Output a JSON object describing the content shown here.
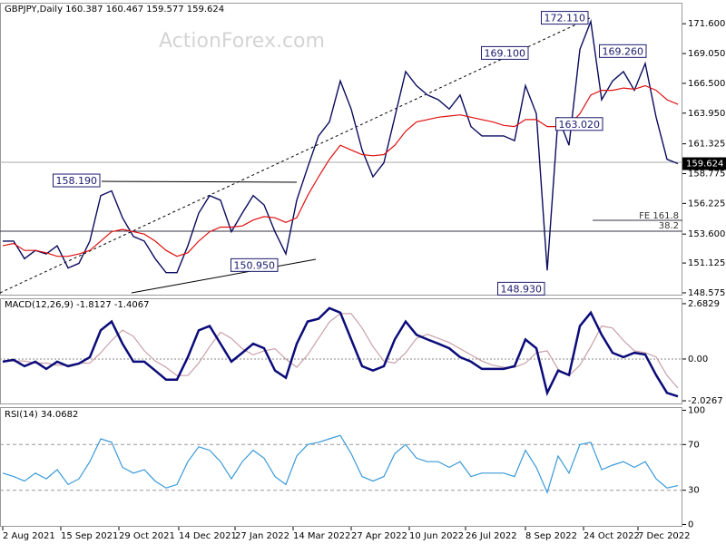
{
  "chart_data": [
    {
      "type": "line",
      "title": "GBPJPY,Daily  160.387 160.467 159.577 159.624",
      "watermark": "ActionForex.com",
      "x": [
        0,
        6,
        12,
        18,
        24,
        30,
        36,
        42,
        48,
        54,
        60,
        66,
        72,
        78,
        84,
        90,
        96,
        102,
        108,
        114,
        120,
        126,
        132,
        138,
        144,
        150,
        156,
        162,
        168,
        174,
        180,
        186,
        192,
        198,
        204,
        210,
        216,
        222,
        228,
        234,
        240,
        246,
        252,
        258,
        264,
        270,
        276,
        282,
        288,
        294,
        300,
        306,
        312,
        318,
        324,
        330,
        336,
        342,
        348,
        354,
        360,
        366,
        372
      ],
      "series": [
        {
          "color": "#0b0b5e",
          "values": [
            153.0,
            153.0,
            151.5,
            152.2,
            151.9,
            152.6,
            150.7,
            151.1,
            153.0,
            156.9,
            157.3,
            155.0,
            153.4,
            153.0,
            151.5,
            150.3,
            150.3,
            152.6,
            155.4,
            156.9,
            156.5,
            153.8,
            155.4,
            156.9,
            156.1,
            153.8,
            151.9,
            156.5,
            159.3,
            162.0,
            163.2,
            166.7,
            164.3,
            160.8,
            158.5,
            159.7,
            163.6,
            167.5,
            166.3,
            165.5,
            165.1,
            164.3,
            165.5,
            162.8,
            162.0,
            162.0,
            162.0,
            161.6,
            166.3,
            163.9,
            150.5,
            163.6,
            161.2,
            169.4,
            171.8,
            165.1,
            166.7,
            167.5,
            165.9,
            168.2,
            163.6,
            160.0,
            159.624
          ]
        },
        {
          "color": "#e01010",
          "values": [
            152.6,
            152.8,
            152.2,
            152.2,
            152.0,
            151.7,
            151.7,
            151.9,
            152.2,
            153.0,
            153.8,
            154.0,
            153.8,
            153.6,
            153.0,
            152.2,
            151.7,
            152.0,
            153.0,
            153.8,
            154.2,
            154.2,
            154.3,
            154.8,
            155.1,
            155.0,
            154.6,
            155.0,
            156.9,
            158.5,
            160.0,
            161.2,
            160.8,
            160.4,
            160.3,
            160.4,
            161.2,
            162.4,
            163.2,
            163.4,
            163.6,
            163.7,
            163.8,
            163.6,
            163.4,
            163.2,
            162.9,
            162.8,
            163.4,
            163.4,
            162.8,
            162.8,
            162.9,
            163.9,
            165.5,
            165.9,
            165.9,
            166.1,
            166.0,
            166.3,
            165.9,
            165.1,
            164.7
          ]
        }
      ],
      "ylim": [
        148.34,
        173.32
      ],
      "yticks": [
        {
          "value": 171.6,
          "label": "171.600"
        },
        {
          "value": 169.05,
          "label": "169.050"
        },
        {
          "value": 166.5,
          "label": "166.500"
        },
        {
          "value": 163.95,
          "label": "163.950"
        },
        161.325,
        158.775,
        156.225,
        {
          "value": 153.6,
          "label": "153.600"
        },
        151.125,
        148.575
      ],
      "last_price": 159.624,
      "annotations": [
        {
          "x": 324,
          "value": 172.11,
          "label": "172.110"
        },
        {
          "x": 291,
          "value": 169.1,
          "label": "169.100"
        },
        {
          "x": 356,
          "value": 169.26,
          "label": "169.260"
        },
        {
          "x": 332,
          "value": 163.02,
          "label": "163.020"
        },
        {
          "x": 55,
          "value": 158.19,
          "label": "158.190"
        },
        {
          "x": 153,
          "value": 150.95,
          "label": "150.950"
        },
        {
          "x": 300,
          "value": 148.93,
          "label": "148.930"
        }
      ],
      "level_labels": [
        "FE 161.8",
        "38.2"
      ]
    },
    {
      "type": "line",
      "title": "MACD(12,26,9) -1.8127 -1.4067",
      "x": [
        0,
        6,
        12,
        18,
        24,
        30,
        36,
        42,
        48,
        54,
        60,
        66,
        72,
        78,
        84,
        90,
        96,
        102,
        108,
        114,
        120,
        126,
        132,
        138,
        144,
        150,
        156,
        162,
        168,
        174,
        180,
        186,
        192,
        198,
        204,
        210,
        216,
        222,
        228,
        234,
        240,
        246,
        252,
        258,
        264,
        270,
        276,
        282,
        288,
        294,
        300,
        306,
        312,
        318,
        324,
        330,
        336,
        342,
        348,
        354,
        360,
        366,
        372
      ],
      "series": [
        {
          "color": "#c8a0a8",
          "values": [
            -0.1,
            -0.1,
            -0.1,
            -0.2,
            -0.2,
            -0.3,
            -0.3,
            -0.2,
            -0.2,
            0.3,
            0.9,
            1.4,
            1.1,
            0.4,
            -0.1,
            -0.4,
            -0.8,
            -0.8,
            -0.2,
            0.6,
            1.3,
            1.0,
            0.5,
            0.2,
            0.4,
            0.5,
            0.0,
            -0.4,
            0.2,
            1.0,
            1.8,
            2.2,
            2.2,
            1.5,
            0.6,
            -0.1,
            -0.2,
            0.3,
            1.0,
            1.2,
            1.0,
            0.8,
            0.5,
            0.2,
            -0.1,
            -0.3,
            -0.4,
            -0.4,
            -0.2,
            0.3,
            0.4,
            -0.5,
            -0.8,
            -0.3,
            0.6,
            1.6,
            1.5,
            0.9,
            0.4,
            0.3,
            0.1,
            -0.8,
            -1.4067
          ]
        },
        {
          "color": "#0b0b7a",
          "values": [
            -0.13,
            -0.04,
            -0.35,
            -0.13,
            -0.48,
            -0.13,
            -0.35,
            -0.22,
            0.09,
            1.39,
            1.82,
            0.74,
            -0.13,
            -0.13,
            -0.56,
            -1.0,
            -1.0,
            0.09,
            1.39,
            1.6,
            0.74,
            -0.13,
            0.3,
            0.74,
            0.52,
            -0.56,
            -0.91,
            0.74,
            1.82,
            1.95,
            2.47,
            2.25,
            0.95,
            -0.35,
            -0.56,
            -0.35,
            0.95,
            1.82,
            1.17,
            0.95,
            0.74,
            0.52,
            0.09,
            -0.13,
            -0.48,
            -0.48,
            -0.48,
            -0.35,
            0.95,
            0.52,
            -1.64,
            -0.56,
            -0.78,
            1.6,
            2.25,
            1.17,
            0.3,
            0.09,
            0.3,
            0.22,
            -0.78,
            -1.64,
            -1.8127
          ]
        }
      ],
      "ylim": [
        -2.2,
        2.9
      ],
      "yticks": [
        2.6829,
        {
          "value": 0,
          "label": "0.00"
        },
        -2.0267
      ]
    },
    {
      "type": "line",
      "title": "RSI(14) 34.0682",
      "x": [
        0,
        6,
        12,
        18,
        24,
        30,
        36,
        42,
        48,
        54,
        60,
        66,
        72,
        78,
        84,
        90,
        96,
        102,
        108,
        114,
        120,
        126,
        132,
        138,
        144,
        150,
        156,
        162,
        168,
        174,
        180,
        186,
        192,
        198,
        204,
        210,
        216,
        222,
        228,
        234,
        240,
        246,
        252,
        258,
        264,
        270,
        276,
        282,
        288,
        294,
        300,
        306,
        312,
        318,
        324,
        330,
        336,
        342,
        348,
        354,
        360,
        366,
        372
      ],
      "series": [
        {
          "color": "#3a9ad9",
          "values": [
            45,
            42,
            38,
            45,
            40,
            48,
            35,
            40,
            55,
            75,
            72,
            50,
            45,
            48,
            38,
            32,
            35,
            55,
            68,
            65,
            55,
            40,
            55,
            65,
            58,
            42,
            35,
            60,
            70,
            72,
            75,
            78,
            62,
            42,
            38,
            42,
            62,
            70,
            58,
            55,
            55,
            50,
            55,
            42,
            45,
            45,
            45,
            42,
            65,
            50,
            28,
            60,
            45,
            70,
            72,
            48,
            52,
            55,
            50,
            55,
            40,
            32,
            34.0682
          ]
        }
      ],
      "ylim": [
        -2,
        102
      ],
      "yticks": [
        100,
        70,
        30,
        0
      ],
      "guides": [
        70,
        30
      ],
      "xticks": [
        {
          "value": 0,
          "label": "2 Aug 2021"
        },
        {
          "value": 32,
          "label": "15 Sep 2021"
        },
        {
          "value": 64,
          "label": "29 Oct 2021"
        },
        {
          "value": 97,
          "label": "14 Dec 2021"
        },
        {
          "value": 128,
          "label": "27 Jan 2022"
        },
        {
          "value": 160,
          "label": "14 Mar 2022"
        },
        {
          "value": 192,
          "label": "27 Apr 2022"
        },
        {
          "value": 224,
          "label": "10 Jun 2022"
        },
        {
          "value": 255,
          "label": "26 Jul 2022"
        },
        {
          "value": 288,
          "label": "8 Sep 2022"
        },
        {
          "value": 320,
          "label": "24 Oct 2022"
        },
        {
          "value": 350,
          "label": "7 Dec 2022"
        }
      ],
      "xlim": [
        -1.5,
        374.5
      ]
    }
  ]
}
